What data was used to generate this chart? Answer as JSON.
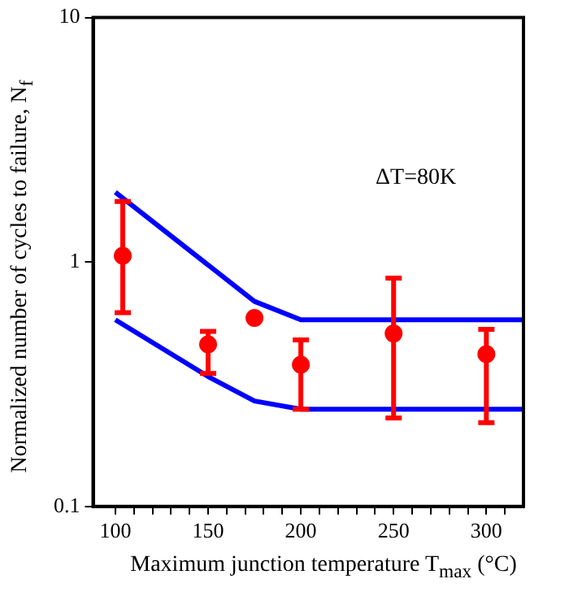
{
  "chart_data": {
    "type": "scatter",
    "xlabel": "Maximum junction temperature T$_{max}$ (°C)",
    "ylabel": "Normalized number of cycles to failure, N$_{f}$",
    "annotations": [
      "ΔT=80K"
    ],
    "log": "y",
    "grid": false,
    "legend": false,
    "marker": "circle",
    "xlim": [
      88,
      320
    ],
    "xticks": [
      100,
      {
        "value": 110,
        "label": null
      },
      {
        "value": 120,
        "label": null
      },
      {
        "value": 130,
        "label": null
      },
      {
        "value": 140,
        "label": null
      },
      150,
      {
        "value": 160,
        "label": null
      },
      {
        "value": 170,
        "label": null
      },
      {
        "value": 180,
        "label": null
      },
      {
        "value": 190,
        "label": null
      },
      200,
      {
        "value": 210,
        "label": null
      },
      {
        "value": 220,
        "label": null
      },
      {
        "value": 230,
        "label": null
      },
      {
        "value": 240,
        "label": null
      },
      250,
      {
        "value": 260,
        "label": null
      },
      {
        "value": 270,
        "label": null
      },
      {
        "value": 280,
        "label": null
      },
      {
        "value": 290,
        "label": null
      },
      300,
      {
        "value": 310,
        "label": null
      }
    ],
    "ylim": [
      0.1,
      10
    ],
    "yticks": [
      0.1,
      1,
      10
    ],
    "series": [
      {
        "type": "line",
        "color": "#0000ff",
        "marker": "none",
        "x": [
          100,
          175,
          200,
          320
        ],
        "values": [
          1.93,
          0.69,
          0.58,
          0.58
        ]
      },
      {
        "type": "line",
        "color": "#0000ff",
        "marker": "none",
        "x": [
          100,
          150,
          175,
          200,
          320
        ],
        "values": [
          0.58,
          0.34,
          0.27,
          0.25,
          0.25
        ]
      },
      {
        "type": "scatter",
        "color": "#ff0000",
        "x": [
          104,
          150,
          175,
          200,
          250,
          300
        ],
        "values": [
          1.06,
          0.46,
          0.59,
          0.38,
          0.51,
          0.42
        ],
        "errors": [
          [
            0.62,
            1.77
          ],
          [
            0.35,
            0.52
          ],
          null,
          [
            0.25,
            0.48
          ],
          [
            0.23,
            0.86
          ],
          [
            0.22,
            0.53
          ]
        ]
      }
    ]
  }
}
